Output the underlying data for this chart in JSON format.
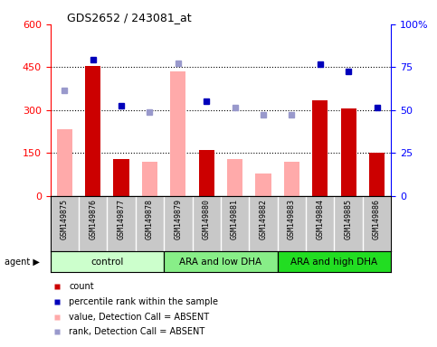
{
  "title": "GDS2652 / 243081_at",
  "samples": [
    "GSM149875",
    "GSM149876",
    "GSM149877",
    "GSM149878",
    "GSM149879",
    "GSM149880",
    "GSM149881",
    "GSM149882",
    "GSM149883",
    "GSM149884",
    "GSM149885",
    "GSM149886"
  ],
  "groups": [
    {
      "label": "control",
      "start": 0,
      "end": 3,
      "color": "#ccffcc"
    },
    {
      "label": "ARA and low DHA",
      "start": 4,
      "end": 7,
      "color": "#88ee88"
    },
    {
      "label": "ARA and high DHA",
      "start": 8,
      "end": 11,
      "color": "#22dd22"
    }
  ],
  "count_present": [
    null,
    455,
    130,
    null,
    null,
    160,
    null,
    null,
    null,
    335,
    305,
    150
  ],
  "count_absent": [
    235,
    null,
    null,
    120,
    435,
    null,
    130,
    80,
    120,
    null,
    null,
    null
  ],
  "rank_present": [
    null,
    475,
    315,
    null,
    null,
    330,
    null,
    null,
    null,
    460,
    435,
    310
  ],
  "rank_absent": [
    370,
    null,
    null,
    295,
    465,
    null,
    308,
    285,
    283,
    null,
    null,
    null
  ],
  "ylim": [
    0,
    600
  ],
  "yticks": [
    0,
    150,
    300,
    450,
    600
  ],
  "ytick_labels_left": [
    "0",
    "150",
    "300",
    "450",
    "600"
  ],
  "ytick_labels_right": [
    "0",
    "25",
    "50",
    "75",
    "100%"
  ],
  "bar_color_present": "#cc0000",
  "bar_color_absent": "#ffaaaa",
  "dot_color_present": "#0000bb",
  "dot_color_absent": "#9999cc",
  "hlines": [
    150,
    300,
    450
  ],
  "legend_items": [
    {
      "color": "#cc0000",
      "label": "count",
      "marker": "s"
    },
    {
      "color": "#0000bb",
      "label": "percentile rank within the sample",
      "marker": "s"
    },
    {
      "color": "#ffaaaa",
      "label": "value, Detection Call = ABSENT",
      "marker": "s"
    },
    {
      "color": "#9999cc",
      "label": "rank, Detection Call = ABSENT",
      "marker": "s"
    }
  ]
}
